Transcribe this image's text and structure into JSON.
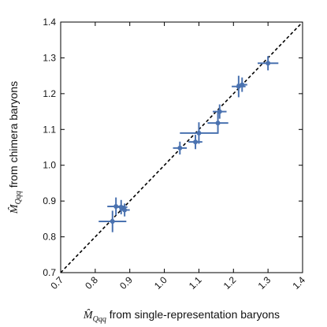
{
  "chart_data": {
    "type": "scatter",
    "xlabel_symbol": "M̂",
    "xlabel_subscript": "Qqq",
    "xlabel_text": " from single-representation baryons",
    "ylabel_symbol": "M̂",
    "ylabel_subscript": "Qqq",
    "ylabel_text": " from chimera baryons",
    "xlim": [
      0.7,
      1.4
    ],
    "ylim": [
      0.7,
      1.4
    ],
    "xticks": [
      "0.7",
      "0.8",
      "0.9",
      "1.0",
      "1.1",
      "1.2",
      "1.3",
      "1.4"
    ],
    "yticks": [
      "0.7",
      "0.8",
      "0.9",
      "1.0",
      "1.1",
      "1.2",
      "1.3",
      "1.4"
    ],
    "grid": false,
    "reference_line": {
      "style": "dashed",
      "color": "#000000",
      "from": [
        0.7,
        0.7
      ],
      "to": [
        1.4,
        1.4
      ]
    },
    "marker_color": "#4a72b0",
    "points": [
      {
        "x": 0.85,
        "y": 0.843,
        "xerr": 0.04,
        "yerr": 0.03
      },
      {
        "x": 0.86,
        "y": 0.885,
        "xerr": 0.025,
        "yerr": 0.025
      },
      {
        "x": 0.875,
        "y": 0.883,
        "xerr": 0.018,
        "yerr": 0.02
      },
      {
        "x": 0.885,
        "y": 0.875,
        "xerr": 0.015,
        "yerr": 0.018
      },
      {
        "x": 1.045,
        "y": 1.048,
        "xerr": 0.02,
        "yerr": 0.018
      },
      {
        "x": 1.09,
        "y": 1.065,
        "xerr": 0.02,
        "yerr": 0.02
      },
      {
        "x": 1.1,
        "y": 1.09,
        "xerr": 0.055,
        "yerr": 0.03
      },
      {
        "x": 1.155,
        "y": 1.118,
        "xerr": 0.03,
        "yerr": 0.03
      },
      {
        "x": 1.16,
        "y": 1.15,
        "xerr": 0.02,
        "yerr": 0.02
      },
      {
        "x": 1.215,
        "y": 1.22,
        "xerr": 0.02,
        "yerr": 0.03
      },
      {
        "x": 1.225,
        "y": 1.225,
        "xerr": 0.015,
        "yerr": 0.02
      },
      {
        "x": 1.3,
        "y": 1.285,
        "xerr": 0.03,
        "yerr": 0.02
      }
    ]
  }
}
